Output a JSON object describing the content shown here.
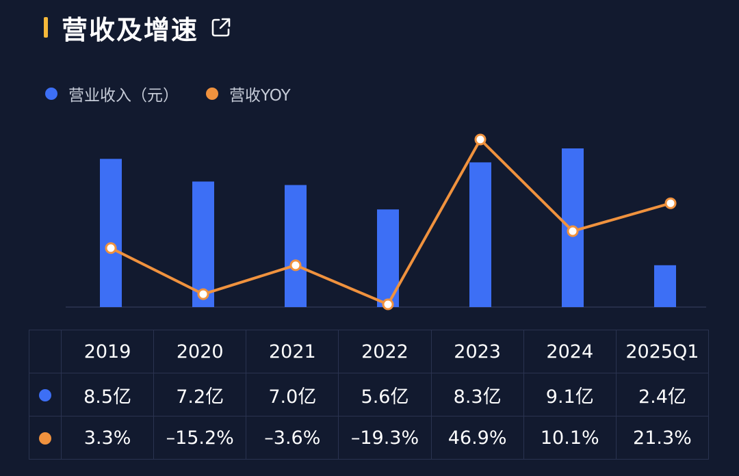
{
  "header": {
    "title": "营收及增速"
  },
  "colors": {
    "bar": "#3d6ff5",
    "line": "#f0923e",
    "accent": "#f5b83a",
    "background": "#121a2f"
  },
  "icons": {
    "share": "external-link-icon"
  },
  "legend": {
    "bar_label": "营业收入（元）",
    "line_label": "营收YOY"
  },
  "table": {
    "years": [
      "2019",
      "2020",
      "2021",
      "2022",
      "2023",
      "2024",
      "2025Q1"
    ],
    "revenue": [
      "8.5亿",
      "7.2亿",
      "7.0亿",
      "5.6亿",
      "8.3亿",
      "9.1亿",
      "2.4亿"
    ],
    "yoy": [
      "3.3%",
      "–15.2%",
      "–3.6%",
      "–19.3%",
      "46.9%",
      "10.1%",
      "21.3%"
    ]
  },
  "chart_data": {
    "type": "bar",
    "categories": [
      "2019",
      "2020",
      "2021",
      "2022",
      "2023",
      "2024",
      "2025Q1"
    ],
    "series": [
      {
        "name": "营业收入（元）",
        "type": "bar",
        "values": [
          8.5,
          7.2,
          7.0,
          5.6,
          8.3,
          9.1,
          2.4
        ],
        "unit": "亿"
      },
      {
        "name": "营收YOY",
        "type": "line",
        "values": [
          3.3,
          -15.2,
          -3.6,
          -19.3,
          46.9,
          10.1,
          21.3
        ],
        "unit": "%"
      }
    ],
    "grid": false,
    "legend_position": "top-left"
  }
}
